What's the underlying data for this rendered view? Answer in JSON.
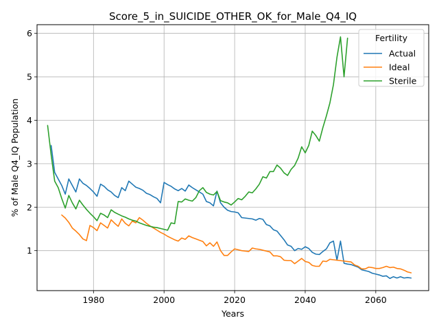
{
  "chart_data": {
    "type": "line",
    "title": "Score_5_in_SUICIDE_OTHER_OK_for_Male_Q4_IQ",
    "xlabel": "Years",
    "ylabel": "% of Male Q4_IQ Population",
    "xlim": [
      1964,
      2075
    ],
    "ylim": [
      0.08,
      6.2
    ],
    "xticks": [
      1980,
      2000,
      2020,
      2040,
      2060
    ],
    "yticks": [
      1,
      2,
      3,
      4,
      5,
      6
    ],
    "grid": true,
    "legend": {
      "title": "Fertility",
      "placement": "top-right"
    },
    "series": [
      {
        "name": "Actual",
        "color": "#1f77b4",
        "points": [
          [
            1968,
            3.42
          ],
          [
            1969,
            2.8
          ],
          [
            1970,
            2.65
          ],
          [
            1971,
            2.5
          ],
          [
            1972,
            2.3
          ],
          [
            1973,
            2.65
          ],
          [
            1974,
            2.5
          ],
          [
            1975,
            2.35
          ],
          [
            1976,
            2.65
          ],
          [
            1977,
            2.55
          ],
          [
            1978,
            2.5
          ],
          [
            1979,
            2.43
          ],
          [
            1980,
            2.35
          ],
          [
            1981,
            2.25
          ],
          [
            1982,
            2.53
          ],
          [
            1983,
            2.48
          ],
          [
            1984,
            2.4
          ],
          [
            1985,
            2.35
          ],
          [
            1986,
            2.27
          ],
          [
            1987,
            2.22
          ],
          [
            1988,
            2.45
          ],
          [
            1989,
            2.38
          ],
          [
            1990,
            2.6
          ],
          [
            1991,
            2.53
          ],
          [
            1992,
            2.46
          ],
          [
            1993,
            2.43
          ],
          [
            1994,
            2.39
          ],
          [
            1995,
            2.32
          ],
          [
            1996,
            2.29
          ],
          [
            1997,
            2.24
          ],
          [
            1998,
            2.2
          ],
          [
            1999,
            2.1
          ],
          [
            2000,
            2.57
          ],
          [
            2001,
            2.52
          ],
          [
            2002,
            2.48
          ],
          [
            2003,
            2.42
          ],
          [
            2004,
            2.38
          ],
          [
            2005,
            2.43
          ],
          [
            2006,
            2.37
          ],
          [
            2007,
            2.51
          ],
          [
            2008,
            2.45
          ],
          [
            2009,
            2.4
          ],
          [
            2010,
            2.35
          ],
          [
            2011,
            2.3
          ],
          [
            2012,
            2.13
          ],
          [
            2013,
            2.1
          ],
          [
            2014,
            2.03
          ],
          [
            2015,
            2.37
          ],
          [
            2016,
            2.1
          ],
          [
            2017,
            2.0
          ],
          [
            2018,
            1.93
          ],
          [
            2019,
            1.9
          ],
          [
            2020,
            1.89
          ],
          [
            2021,
            1.87
          ],
          [
            2022,
            1.76
          ],
          [
            2023,
            1.75
          ],
          [
            2024,
            1.74
          ],
          [
            2025,
            1.73
          ],
          [
            2026,
            1.7
          ],
          [
            2027,
            1.74
          ],
          [
            2028,
            1.72
          ],
          [
            2029,
            1.6
          ],
          [
            2030,
            1.57
          ],
          [
            2031,
            1.48
          ],
          [
            2032,
            1.45
          ],
          [
            2033,
            1.35
          ],
          [
            2034,
            1.25
          ],
          [
            2035,
            1.13
          ],
          [
            2036,
            1.1
          ],
          [
            2037,
            1.0
          ],
          [
            2038,
            1.05
          ],
          [
            2039,
            1.03
          ],
          [
            2040,
            1.09
          ],
          [
            2041,
            1.05
          ],
          [
            2042,
            0.96
          ],
          [
            2043,
            0.92
          ],
          [
            2044,
            0.91
          ],
          [
            2045,
            0.98
          ],
          [
            2046,
            1.04
          ],
          [
            2047,
            1.18
          ],
          [
            2048,
            1.22
          ],
          [
            2049,
            0.78
          ],
          [
            2050,
            1.22
          ],
          [
            2051,
            0.71
          ],
          [
            2052,
            0.69
          ],
          [
            2053,
            0.68
          ],
          [
            2054,
            0.65
          ],
          [
            2055,
            0.62
          ],
          [
            2056,
            0.56
          ],
          [
            2057,
            0.54
          ],
          [
            2058,
            0.52
          ],
          [
            2059,
            0.48
          ],
          [
            2060,
            0.46
          ],
          [
            2061,
            0.44
          ],
          [
            2062,
            0.41
          ],
          [
            2063,
            0.42
          ],
          [
            2064,
            0.36
          ],
          [
            2065,
            0.4
          ],
          [
            2066,
            0.37
          ],
          [
            2067,
            0.4
          ],
          [
            2068,
            0.37
          ],
          [
            2069,
            0.38
          ],
          [
            2070,
            0.37
          ]
        ]
      },
      {
        "name": "Ideal",
        "color": "#ff7f0e",
        "points": [
          [
            1971,
            1.82
          ],
          [
            1972,
            1.75
          ],
          [
            1973,
            1.65
          ],
          [
            1974,
            1.52
          ],
          [
            1975,
            1.45
          ],
          [
            1976,
            1.37
          ],
          [
            1977,
            1.27
          ],
          [
            1978,
            1.23
          ],
          [
            1979,
            1.58
          ],
          [
            1980,
            1.53
          ],
          [
            1981,
            1.46
          ],
          [
            1982,
            1.64
          ],
          [
            1983,
            1.58
          ],
          [
            1984,
            1.52
          ],
          [
            1985,
            1.71
          ],
          [
            1986,
            1.63
          ],
          [
            1987,
            1.56
          ],
          [
            1988,
            1.73
          ],
          [
            1989,
            1.63
          ],
          [
            1990,
            1.57
          ],
          [
            1991,
            1.68
          ],
          [
            1992,
            1.64
          ],
          [
            1993,
            1.76
          ],
          [
            1994,
            1.7
          ],
          [
            1995,
            1.63
          ],
          [
            1996,
            1.57
          ],
          [
            1997,
            1.52
          ],
          [
            1998,
            1.47
          ],
          [
            1999,
            1.42
          ],
          [
            2000,
            1.38
          ],
          [
            2001,
            1.33
          ],
          [
            2002,
            1.29
          ],
          [
            2003,
            1.25
          ],
          [
            2004,
            1.22
          ],
          [
            2005,
            1.29
          ],
          [
            2006,
            1.26
          ],
          [
            2007,
            1.34
          ],
          [
            2008,
            1.3
          ],
          [
            2009,
            1.27
          ],
          [
            2010,
            1.24
          ],
          [
            2011,
            1.21
          ],
          [
            2012,
            1.11
          ],
          [
            2013,
            1.18
          ],
          [
            2014,
            1.1
          ],
          [
            2015,
            1.2
          ],
          [
            2016,
            1.0
          ],
          [
            2017,
            0.89
          ],
          [
            2018,
            0.89
          ],
          [
            2019,
            0.97
          ],
          [
            2020,
            1.04
          ],
          [
            2021,
            1.02
          ],
          [
            2022,
            1.0
          ],
          [
            2023,
            0.99
          ],
          [
            2024,
            0.98
          ],
          [
            2025,
            1.06
          ],
          [
            2026,
            1.04
          ],
          [
            2027,
            1.03
          ],
          [
            2028,
            1.01
          ],
          [
            2029,
            0.99
          ],
          [
            2030,
            0.97
          ],
          [
            2031,
            0.88
          ],
          [
            2032,
            0.88
          ],
          [
            2033,
            0.86
          ],
          [
            2034,
            0.78
          ],
          [
            2035,
            0.77
          ],
          [
            2036,
            0.77
          ],
          [
            2037,
            0.7
          ],
          [
            2038,
            0.76
          ],
          [
            2039,
            0.82
          ],
          [
            2040,
            0.75
          ],
          [
            2041,
            0.73
          ],
          [
            2042,
            0.66
          ],
          [
            2043,
            0.64
          ],
          [
            2044,
            0.64
          ],
          [
            2045,
            0.76
          ],
          [
            2046,
            0.75
          ],
          [
            2047,
            0.8
          ],
          [
            2048,
            0.79
          ],
          [
            2049,
            0.78
          ],
          [
            2050,
            0.77
          ],
          [
            2051,
            0.76
          ],
          [
            2052,
            0.75
          ],
          [
            2053,
            0.74
          ],
          [
            2054,
            0.67
          ],
          [
            2055,
            0.64
          ],
          [
            2056,
            0.58
          ],
          [
            2057,
            0.58
          ],
          [
            2058,
            0.62
          ],
          [
            2059,
            0.61
          ],
          [
            2060,
            0.59
          ],
          [
            2061,
            0.59
          ],
          [
            2062,
            0.61
          ],
          [
            2063,
            0.64
          ],
          [
            2064,
            0.61
          ],
          [
            2065,
            0.62
          ],
          [
            2066,
            0.59
          ],
          [
            2067,
            0.58
          ],
          [
            2068,
            0.55
          ],
          [
            2069,
            0.51
          ],
          [
            2070,
            0.49
          ]
        ]
      },
      {
        "name": "Sterile",
        "color": "#2ca02c",
        "points": [
          [
            1967,
            3.88
          ],
          [
            1968,
            3.2
          ],
          [
            1969,
            2.6
          ],
          [
            1970,
            2.45
          ],
          [
            1971,
            2.2
          ],
          [
            1972,
            1.98
          ],
          [
            1973,
            2.27
          ],
          [
            1974,
            2.1
          ],
          [
            1975,
            1.96
          ],
          [
            1976,
            2.16
          ],
          [
            1977,
            2.05
          ],
          [
            1978,
            1.95
          ],
          [
            1979,
            1.86
          ],
          [
            1980,
            1.78
          ],
          [
            1981,
            1.69
          ],
          [
            1982,
            1.86
          ],
          [
            1983,
            1.82
          ],
          [
            1984,
            1.76
          ],
          [
            1985,
            1.94
          ],
          [
            1986,
            1.88
          ],
          [
            1987,
            1.84
          ],
          [
            1988,
            1.8
          ],
          [
            1989,
            1.77
          ],
          [
            1990,
            1.73
          ],
          [
            1991,
            1.7
          ],
          [
            1992,
            1.68
          ],
          [
            1993,
            1.64
          ],
          [
            1994,
            1.61
          ],
          [
            1995,
            1.58
          ],
          [
            1996,
            1.56
          ],
          [
            1997,
            1.54
          ],
          [
            1998,
            1.53
          ],
          [
            1999,
            1.51
          ],
          [
            2000,
            1.49
          ],
          [
            2001,
            1.47
          ],
          [
            2002,
            1.64
          ],
          [
            2003,
            1.62
          ],
          [
            2004,
            2.13
          ],
          [
            2005,
            2.12
          ],
          [
            2006,
            2.19
          ],
          [
            2007,
            2.16
          ],
          [
            2008,
            2.14
          ],
          [
            2009,
            2.22
          ],
          [
            2010,
            2.38
          ],
          [
            2011,
            2.45
          ],
          [
            2012,
            2.34
          ],
          [
            2013,
            2.3
          ],
          [
            2014,
            2.28
          ],
          [
            2015,
            2.36
          ],
          [
            2016,
            2.15
          ],
          [
            2017,
            2.12
          ],
          [
            2018,
            2.1
          ],
          [
            2019,
            2.05
          ],
          [
            2020,
            2.12
          ],
          [
            2021,
            2.2
          ],
          [
            2022,
            2.17
          ],
          [
            2023,
            2.25
          ],
          [
            2024,
            2.35
          ],
          [
            2025,
            2.33
          ],
          [
            2026,
            2.42
          ],
          [
            2027,
            2.53
          ],
          [
            2028,
            2.7
          ],
          [
            2029,
            2.67
          ],
          [
            2030,
            2.82
          ],
          [
            2031,
            2.82
          ],
          [
            2032,
            2.97
          ],
          [
            2033,
            2.9
          ],
          [
            2034,
            2.79
          ],
          [
            2035,
            2.73
          ],
          [
            2036,
            2.87
          ],
          [
            2037,
            2.96
          ],
          [
            2038,
            3.13
          ],
          [
            2039,
            3.39
          ],
          [
            2040,
            3.25
          ],
          [
            2041,
            3.42
          ],
          [
            2042,
            3.75
          ],
          [
            2043,
            3.65
          ],
          [
            2044,
            3.52
          ],
          [
            2045,
            3.83
          ],
          [
            2046,
            4.1
          ],
          [
            2047,
            4.4
          ],
          [
            2048,
            4.82
          ],
          [
            2049,
            5.45
          ],
          [
            2050,
            5.92
          ],
          [
            2051,
            5.0
          ],
          [
            2052,
            5.89
          ]
        ]
      }
    ]
  }
}
